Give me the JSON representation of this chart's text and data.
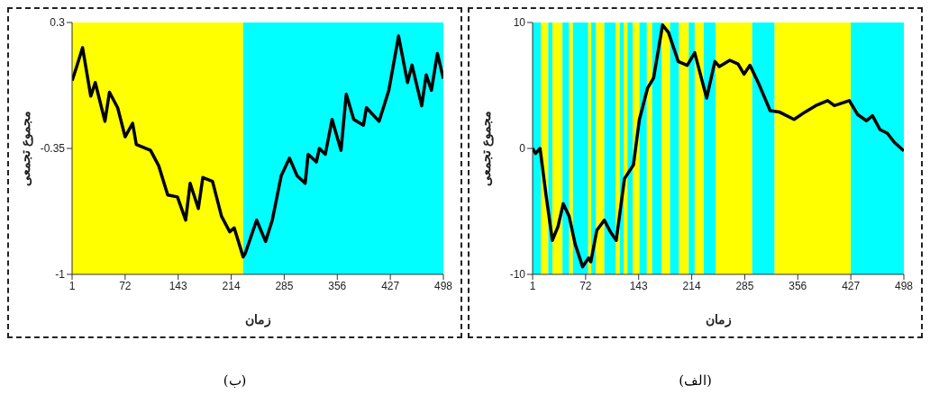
{
  "chart_data": [
    {
      "type": "line",
      "xlabel": "زمان",
      "ylabel": "مجموع تجمعی",
      "annotations": [
        "(ب)"
      ],
      "xlim": [
        1,
        498
      ],
      "xticks": [
        1,
        72,
        143,
        214,
        285,
        356,
        427,
        498
      ],
      "ylim": [
        -1,
        0.3
      ],
      "yticks": [
        -1,
        -0.35,
        0.3
      ],
      "line_style": "solid",
      "color": "#000000",
      "bands": [
        {
          "axis": "x",
          "from": 1,
          "to": 230,
          "color": "#ffff00"
        },
        {
          "axis": "x",
          "from": 230,
          "to": 498,
          "color": "#00ffff"
        }
      ],
      "x": [
        1,
        7,
        15,
        26,
        32,
        45,
        51,
        62,
        72,
        82,
        87,
        106,
        117,
        129,
        142,
        153,
        159,
        170,
        176,
        189,
        201,
        212,
        218,
        230,
        233,
        248,
        260,
        269,
        281,
        292,
        302,
        313,
        317,
        328,
        332,
        340,
        349,
        361,
        368,
        378,
        391,
        395,
        412,
        425,
        438,
        450,
        456,
        469,
        475,
        482,
        490,
        498
      ],
      "values": [
        0.0,
        0.07,
        0.17,
        -0.08,
        -0.01,
        -0.21,
        -0.06,
        -0.14,
        -0.29,
        -0.22,
        -0.33,
        -0.36,
        -0.44,
        -0.59,
        -0.6,
        -0.72,
        -0.53,
        -0.66,
        -0.5,
        -0.52,
        -0.7,
        -0.78,
        -0.76,
        -0.91,
        -0.89,
        -0.72,
        -0.83,
        -0.72,
        -0.49,
        -0.4,
        -0.49,
        -0.53,
        -0.38,
        -0.42,
        -0.35,
        -0.38,
        -0.2,
        -0.36,
        -0.07,
        -0.2,
        -0.23,
        -0.14,
        -0.21,
        -0.05,
        0.23,
        -0.01,
        0.08,
        -0.13,
        0.03,
        -0.05,
        0.14,
        0.01
      ]
    },
    {
      "type": "line",
      "xlabel": "زمان",
      "ylabel": "مجموع تجمعی",
      "annotations": [
        "(الف)"
      ],
      "xlim": [
        1,
        498
      ],
      "xticks": [
        1,
        72,
        143,
        214,
        285,
        356,
        427,
        498
      ],
      "ylim": [
        -10,
        10
      ],
      "yticks": [
        -10,
        0,
        10
      ],
      "line_style": "solid",
      "color": "#000000",
      "bands": [
        {
          "axis": "x",
          "from": 1,
          "to": 12,
          "color": "#00ffff"
        },
        {
          "axis": "x",
          "from": 12,
          "to": 22,
          "color": "#ffff00"
        },
        {
          "axis": "x",
          "from": 22,
          "to": 27.5,
          "color": "#00ffff"
        },
        {
          "axis": "x",
          "from": 27.5,
          "to": 41,
          "color": "#ffff00"
        },
        {
          "axis": "x",
          "from": 41,
          "to": 50,
          "color": "#00ffff"
        },
        {
          "axis": "x",
          "from": 50,
          "to": 55,
          "color": "#ffff00"
        },
        {
          "axis": "x",
          "from": 55,
          "to": 75.5,
          "color": "#00ffff"
        },
        {
          "axis": "x",
          "from": 75.5,
          "to": 79.5,
          "color": "#ffff00"
        },
        {
          "axis": "x",
          "from": 79.5,
          "to": 86,
          "color": "#00ffff"
        },
        {
          "axis": "x",
          "from": 86,
          "to": 97,
          "color": "#ffff00"
        },
        {
          "axis": "x",
          "from": 97,
          "to": 112,
          "color": "#00ffff"
        },
        {
          "axis": "x",
          "from": 112,
          "to": 118,
          "color": "#ffff00"
        },
        {
          "axis": "x",
          "from": 118,
          "to": 123,
          "color": "#00ffff"
        },
        {
          "axis": "x",
          "from": 123,
          "to": 128,
          "color": "#ffff00"
        },
        {
          "axis": "x",
          "from": 128,
          "to": 135,
          "color": "#00ffff"
        },
        {
          "axis": "x",
          "from": 135,
          "to": 144,
          "color": "#ffff00"
        },
        {
          "axis": "x",
          "from": 144,
          "to": 154,
          "color": "#00ffff"
        },
        {
          "axis": "x",
          "from": 154,
          "to": 161,
          "color": "#ffff00"
        },
        {
          "axis": "x",
          "from": 161,
          "to": 174,
          "color": "#00ffff"
        },
        {
          "axis": "x",
          "from": 174,
          "to": 185,
          "color": "#ffff00"
        },
        {
          "axis": "x",
          "from": 185,
          "to": 197,
          "color": "#00ffff"
        },
        {
          "axis": "x",
          "from": 197,
          "to": 210,
          "color": "#ffff00"
        },
        {
          "axis": "x",
          "from": 210,
          "to": 218,
          "color": "#00ffff"
        },
        {
          "axis": "x",
          "from": 218,
          "to": 230,
          "color": "#ffff00"
        },
        {
          "axis": "x",
          "from": 230,
          "to": 246,
          "color": "#00ffff"
        },
        {
          "axis": "x",
          "from": 246,
          "to": 295,
          "color": "#ffff00"
        },
        {
          "axis": "x",
          "from": 295,
          "to": 325,
          "color": "#00ffff"
        },
        {
          "axis": "x",
          "from": 325,
          "to": 427,
          "color": "#ffff00"
        },
        {
          "axis": "x",
          "from": 427,
          "to": 498,
          "color": "#00ffff"
        }
      ],
      "x": [
        1,
        5,
        11,
        19,
        27.5,
        35,
        42,
        50,
        58,
        68,
        76,
        79,
        87,
        97,
        105,
        113,
        124,
        136,
        144,
        155,
        163,
        175,
        183,
        196,
        208,
        218,
        234,
        245,
        251,
        265,
        276,
        284,
        292,
        304,
        319,
        331,
        351,
        366,
        380,
        396,
        405,
        425,
        436,
        448,
        456,
        466,
        476,
        485,
        498
      ],
      "values": [
        0,
        -0.4,
        0,
        -3.7,
        -7.3,
        -6.2,
        -4.4,
        -5.4,
        -7.6,
        -9.4,
        -8.7,
        -9.0,
        -6.5,
        -5.7,
        -6.6,
        -7.3,
        -2.4,
        -1.3,
        2.3,
        4.8,
        5.6,
        9.8,
        9.2,
        6.9,
        6.6,
        7.6,
        4.0,
        6.9,
        6.5,
        7.0,
        6.7,
        5.9,
        6.6,
        5.1,
        3.0,
        2.9,
        2.3,
        2.9,
        3.4,
        3.8,
        3.4,
        3.8,
        2.7,
        2.2,
        2.6,
        1.5,
        1.2,
        0.5,
        -0.2
      ]
    }
  ]
}
